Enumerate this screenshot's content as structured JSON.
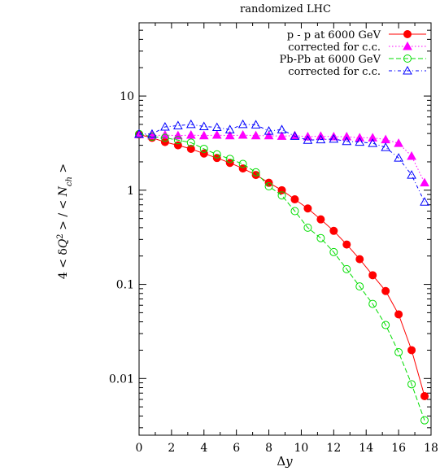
{
  "chart_data": {
    "type": "line",
    "title": "randomized LHC",
    "xlabel": "Δy",
    "ylabel": "4 < δQ² > / < N_ch >",
    "ylabel_parts": [
      "4 < δ",
      "Q",
      "2",
      " > / < ",
      "N",
      "ch",
      " >"
    ],
    "xlabel_parts": [
      "Δ",
      "y"
    ],
    "xlim": [
      0,
      18
    ],
    "ylim": [
      0.0025,
      60
    ],
    "yscale": "log",
    "xticks": [
      0,
      2,
      4,
      6,
      8,
      10,
      12,
      14,
      16,
      18
    ],
    "xtick_labels": [
      "0",
      "2",
      "4",
      "6",
      "8",
      "10",
      "12",
      "14",
      "16",
      "18"
    ],
    "yticks": [
      0.01,
      0.1,
      1,
      10
    ],
    "ytick_labels": [
      "0.01",
      "0.1",
      "1",
      "10"
    ],
    "grid": false,
    "legend_position": "top-right",
    "series": [
      {
        "name": "p - p at 6000 GeV",
        "color": "#ff0000",
        "marker": "filled-circle",
        "line": "solid",
        "x": [
          0.0,
          0.8,
          1.6,
          2.4,
          3.2,
          4.0,
          4.8,
          5.6,
          6.4,
          7.2,
          8.0,
          8.8,
          9.6,
          10.4,
          11.2,
          12.0,
          12.8,
          13.6,
          14.4,
          15.2,
          16.0,
          16.8,
          17.6
        ],
        "y": [
          3.9,
          3.6,
          3.25,
          3.0,
          2.75,
          2.45,
          2.2,
          1.95,
          1.7,
          1.45,
          1.2,
          1.0,
          0.8,
          0.64,
          0.49,
          0.37,
          0.265,
          0.185,
          0.125,
          0.085,
          0.048,
          0.02,
          0.0065
        ]
      },
      {
        "name": "corrected for c.c.",
        "color": "#ff00ff",
        "marker": "filled-triangle",
        "line": "dotted",
        "x": [
          0.0,
          0.8,
          1.6,
          2.4,
          3.2,
          4.0,
          4.8,
          5.6,
          6.4,
          7.2,
          8.0,
          8.8,
          9.6,
          10.4,
          11.2,
          12.0,
          12.8,
          13.6,
          14.4,
          15.2,
          16.0,
          16.8,
          17.6
        ],
        "y": [
          3.9,
          3.8,
          3.85,
          3.8,
          3.85,
          3.8,
          3.85,
          3.8,
          3.85,
          3.8,
          3.8,
          3.75,
          3.8,
          3.7,
          3.75,
          3.7,
          3.7,
          3.6,
          3.6,
          3.45,
          3.15,
          2.3,
          1.2
        ]
      },
      {
        "name": "Pb-Pb at 6000 GeV",
        "color": "#00dd00",
        "marker": "open-circle",
        "line": "dashed",
        "x": [
          0.0,
          0.8,
          1.6,
          2.4,
          3.2,
          4.0,
          4.8,
          5.6,
          6.4,
          7.2,
          8.0,
          8.8,
          9.6,
          10.4,
          11.2,
          12.0,
          12.8,
          13.6,
          14.4,
          15.2,
          16.0,
          16.8,
          17.6
        ],
        "y": [
          3.95,
          3.7,
          3.6,
          3.4,
          3.2,
          2.75,
          2.4,
          2.15,
          1.9,
          1.55,
          1.1,
          0.88,
          0.6,
          0.4,
          0.31,
          0.22,
          0.145,
          0.095,
          0.062,
          0.037,
          0.019,
          0.0087,
          0.0036
        ]
      },
      {
        "name": "corrected for c.c.",
        "color": "#0000ff",
        "marker": "open-triangle",
        "line": "dash-dot",
        "x": [
          0.0,
          0.8,
          1.6,
          2.4,
          3.2,
          4.0,
          4.8,
          5.6,
          6.4,
          7.2,
          8.0,
          8.8,
          9.6,
          10.4,
          11.2,
          12.0,
          12.8,
          13.6,
          14.4,
          15.2,
          16.0,
          16.8,
          17.6
        ],
        "y": [
          3.95,
          3.95,
          4.7,
          4.85,
          5.0,
          4.75,
          4.65,
          4.4,
          5.0,
          4.95,
          4.25,
          4.4,
          3.75,
          3.4,
          3.45,
          3.5,
          3.3,
          3.25,
          3.15,
          2.85,
          2.2,
          1.45,
          0.75
        ]
      }
    ]
  }
}
